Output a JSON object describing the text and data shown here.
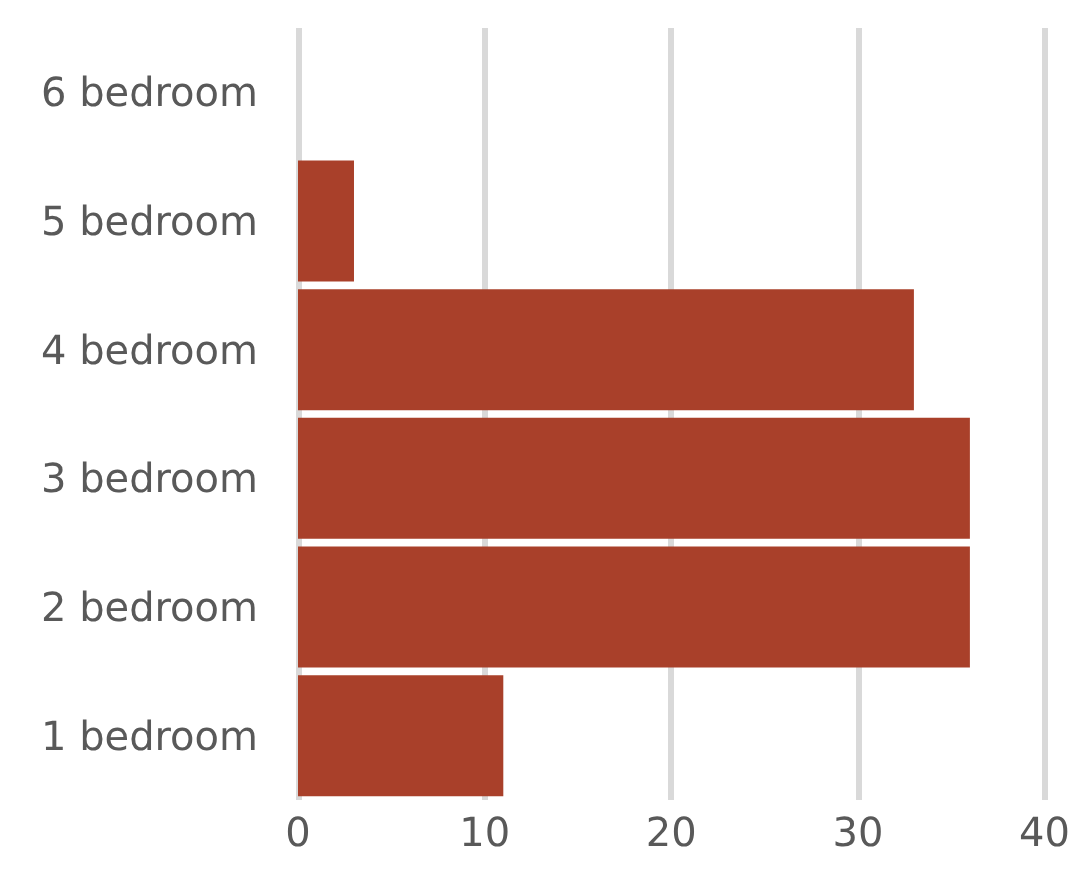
{
  "chart_data": {
    "type": "bar",
    "orientation": "horizontal",
    "categories": [
      "6 bedroom",
      "5 bedroom",
      "4 bedroom",
      "3 bedroom",
      "2 bedroom",
      "1 bedroom"
    ],
    "values": [
      0,
      3,
      33,
      36,
      36,
      11
    ],
    "color": "#a9402a",
    "xlim": [
      0,
      40
    ],
    "xticks": [
      0,
      10,
      20,
      30,
      40
    ],
    "grid": "x"
  }
}
